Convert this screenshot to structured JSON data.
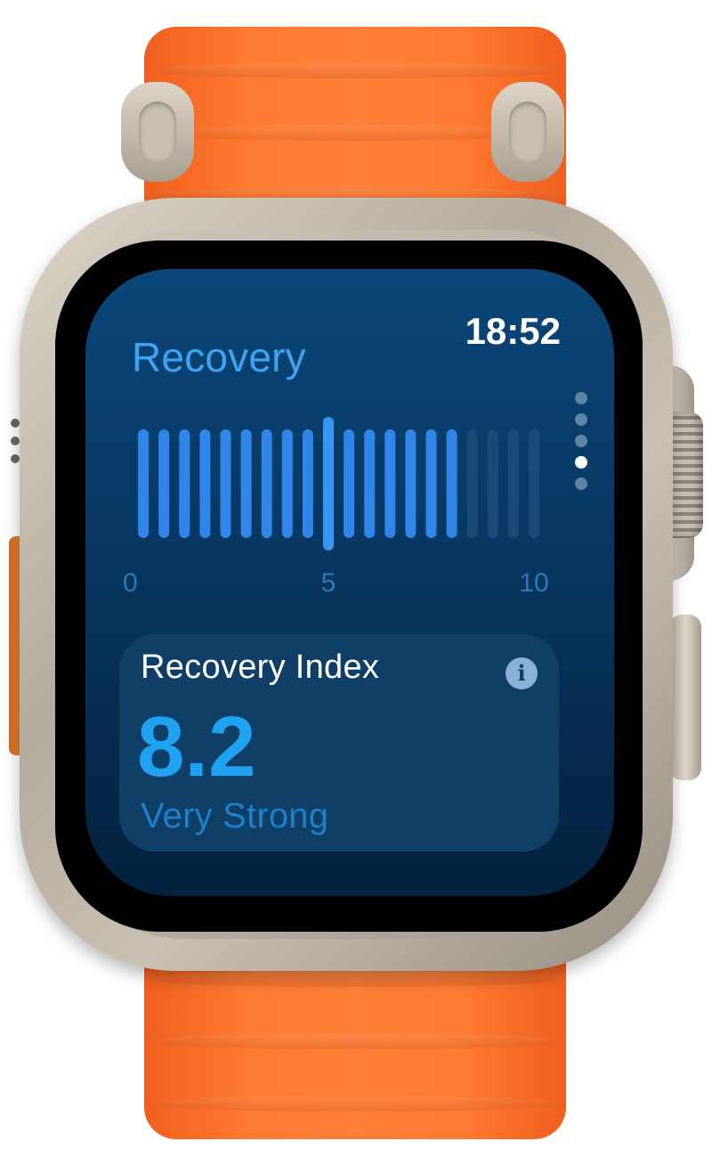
{
  "app": {
    "title": "Recovery",
    "time": "18:52"
  },
  "chart_data": {
    "type": "bar",
    "categories": [
      0.5,
      1,
      1.5,
      2,
      2.5,
      3,
      3.5,
      4,
      4.5,
      5,
      5.5,
      6,
      6.5,
      7,
      7.5,
      8,
      8.5,
      9,
      9.5,
      10
    ],
    "filled_to": 8.2,
    "highlight": 5,
    "xlim": [
      0,
      10
    ],
    "tick_labels": [
      "0",
      "5",
      "10"
    ],
    "colors": {
      "filled": "#2f86e8",
      "unfilled": "#1a4a78",
      "highlight": "#3796f2"
    }
  },
  "page_indicator": {
    "count": 5,
    "active_index": 3
  },
  "card": {
    "label": "Recovery Index",
    "value": "8.2",
    "status": "Very Strong",
    "info_icon": "info-icon",
    "info_glyph": "i"
  },
  "colors": {
    "accent": "#3ea3f2",
    "band": "#ff7a32",
    "screen": "#083a66"
  }
}
